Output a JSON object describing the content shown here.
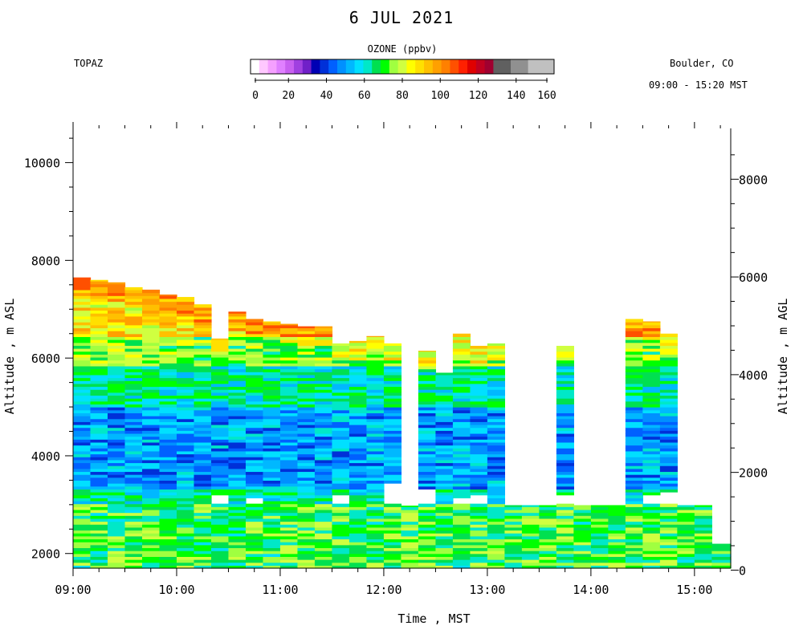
{
  "title": "6 JUL 2021",
  "instrument": "TOPAZ",
  "location": "Boulder, CO",
  "time_range": "09:00 - 15:20 MST",
  "colorbar": {
    "title": "OZONE (ppbv)",
    "ticks": [
      "0",
      "20",
      "40",
      "60",
      "80",
      "100",
      "120",
      "140",
      "160"
    ],
    "tick_values": [
      0,
      20,
      40,
      60,
      80,
      100,
      120,
      140,
      160
    ],
    "colors": [
      "#ffffff",
      "#ffc8ff",
      "#f5a0ff",
      "#e080ff",
      "#c860f0",
      "#a040e0",
      "#7020c8",
      "#0000b4",
      "#0030d8",
      "#0060ff",
      "#0090ff",
      "#00b8ff",
      "#00e0ff",
      "#00e8c8",
      "#00e050",
      "#00ff00",
      "#a0ff40",
      "#d0ff40",
      "#ffff00",
      "#ffe000",
      "#ffc000",
      "#ffa000",
      "#ff8000",
      "#ff5000",
      "#ff2000",
      "#e00000",
      "#c00020",
      "#a00030",
      "#606060",
      "#606060",
      "#909090",
      "#909090",
      "#c0c0c0",
      "#c0c0c0",
      "#c0c0c0"
    ]
  },
  "chart_data": {
    "type": "heatmap",
    "xlabel": "Time , MST",
    "ylabel": "Altitude , m ASL",
    "y2label": "Altitude , m AGL",
    "x_ticks": [
      "09:00",
      "10:00",
      "11:00",
      "12:00",
      "13:00",
      "14:00",
      "15:00"
    ],
    "x_tick_hours": [
      9,
      10,
      11,
      12,
      13,
      14,
      15
    ],
    "xlim_hours": [
      9.0,
      15.35
    ],
    "y_ticks": [
      2000,
      4000,
      6000,
      8000,
      10000
    ],
    "ylim": [
      1700,
      10700
    ],
    "y2_ticks": [
      0,
      2000,
      4000,
      6000,
      8000
    ],
    "y2_offset_m": 1660,
    "profile_start_hours": [
      9.0,
      9.1667,
      9.3333,
      9.5,
      9.6667,
      9.8333,
      10.0,
      10.1667,
      10.3333,
      10.5,
      10.6667,
      10.8333,
      11.0,
      11.1667,
      11.3333,
      11.5,
      11.6667,
      11.8333,
      12.0,
      12.1667,
      12.3333,
      12.5,
      12.6667,
      12.8333,
      13.0,
      13.1667,
      13.3333,
      13.5,
      13.6667,
      13.8333,
      14.0,
      14.1667,
      14.3333,
      14.5,
      14.6667,
      14.8333,
      15.0,
      15.1667
    ],
    "profile_end_hours": [
      9.1667,
      9.3333,
      9.5,
      9.6667,
      9.8333,
      10.0,
      10.1667,
      10.3333,
      10.5,
      10.6667,
      10.8333,
      11.0,
      11.1667,
      11.3333,
      11.5,
      11.6667,
      11.8333,
      12.0,
      12.1667,
      12.3333,
      12.5,
      12.6667,
      12.8333,
      13.0,
      13.1667,
      13.3333,
      13.5,
      13.6667,
      13.8333,
      14.0,
      14.1667,
      14.3333,
      14.5,
      14.6667,
      14.8333,
      15.0,
      15.1667,
      15.35
    ],
    "profile_top_m": [
      7650,
      7600,
      7550,
      7450,
      7400,
      7300,
      7250,
      7100,
      6400,
      6950,
      6800,
      6750,
      6700,
      6650,
      6650,
      6300,
      6350,
      6450,
      6300,
      2980,
      6150,
      5700,
      6500,
      6250,
      6300,
      2990,
      2990,
      2990,
      6250,
      2990,
      2990,
      2990,
      6800,
      6750,
      6500,
      2990,
      2990,
      2200
    ],
    "upper_gaps": [
      {
        "col": 8,
        "from_m": 3000,
        "to_m": 3200
      },
      {
        "col": 10,
        "from_m": 2980,
        "to_m": 3100
      },
      {
        "col": 15,
        "from_m": 3000,
        "to_m": 3150
      },
      {
        "col": 18,
        "from_m": 2980,
        "to_m": 3400
      },
      {
        "col": 20,
        "from_m": 2980,
        "to_m": 3300
      },
      {
        "col": 22,
        "from_m": 2980,
        "to_m": 3100
      },
      {
        "col": 23,
        "from_m": 2980,
        "to_m": 3200
      },
      {
        "col": 25,
        "from_m": 2990,
        "to_m": 3300
      },
      {
        "col": 26,
        "from_m": 2990,
        "to_m": 3300
      },
      {
        "col": 27,
        "from_m": 2990,
        "to_m": 3200
      },
      {
        "col": 28,
        "from_m": 2990,
        "to_m": 3200
      },
      {
        "col": 33,
        "from_m": 2990,
        "to_m": 3200
      },
      {
        "col": 34,
        "from_m": 2990,
        "to_m": 3250
      },
      {
        "col": 35,
        "from_m": 2990,
        "to_m": 3650
      }
    ],
    "profile_bottom_m": 1700,
    "layers_m": [
      {
        "from": 1700,
        "to": 3000,
        "ozone_ppbv": 70
      },
      {
        "from": 3000,
        "to": 3300,
        "ozone_ppbv": 62
      },
      {
        "from": 3300,
        "to": 5000,
        "ozone_ppbv": 50
      },
      {
        "from": 5000,
        "to": 5800,
        "ozone_ppbv": 62
      },
      {
        "from": 5800,
        "to": 6400,
        "ozone_ppbv": 74
      },
      {
        "from": 6400,
        "to": 7700,
        "ozone_ppbv": 88
      }
    ]
  }
}
